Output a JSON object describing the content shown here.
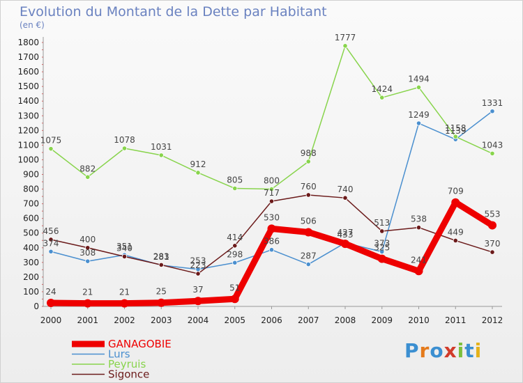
{
  "chart_data": {
    "type": "line",
    "title": "Evolution du Montant de la Dette par Habitant",
    "subtitle": "(en €)",
    "x": [
      "2000",
      "2001",
      "2002",
      "2003",
      "2004",
      "2005",
      "2006",
      "2007",
      "2008",
      "2009",
      "2010",
      "2011",
      "2012"
    ],
    "ylim": [
      0,
      1800
    ],
    "yticks": [
      0,
      100,
      200,
      300,
      400,
      500,
      600,
      700,
      800,
      900,
      1000,
      1100,
      1200,
      1300,
      1400,
      1500,
      1600,
      1700,
      1800
    ],
    "grid": false,
    "legend_placement": "bottom-left",
    "series": [
      {
        "name": "GANAGOBIE",
        "color": "#ee0000",
        "values": [
          24,
          21,
          21,
          25,
          37,
          51,
          530,
          506,
          427,
          325,
          241,
          709,
          553
        ]
      },
      {
        "name": "Lurs",
        "color": "#4a8fcf",
        "values": [
          374,
          308,
          351,
          281,
          253,
          298,
          386,
          287,
          433,
          373,
          1249,
          1139,
          1331
        ]
      },
      {
        "name": "Peyruis",
        "color": "#88d44c",
        "values": [
          1075,
          882,
          1078,
          1031,
          912,
          805,
          800,
          988,
          1777,
          1424,
          1494,
          1158,
          1043
        ]
      },
      {
        "name": "Sigonce",
        "color": "#6b1a1a",
        "values": [
          456,
          400,
          340,
          283,
          223,
          414,
          717,
          760,
          740,
          513,
          538,
          449,
          370
        ]
      }
    ]
  },
  "logo": {
    "text": "Proxiti",
    "letters": [
      "P",
      "r",
      "o",
      "x",
      "i",
      "t",
      "i"
    ],
    "colors": [
      "#3b8fd1",
      "#e47a1b",
      "#3b8fd1",
      "#d13b2a",
      "#7cbf3b",
      "#3b8fd1",
      "#e4b21b"
    ]
  }
}
